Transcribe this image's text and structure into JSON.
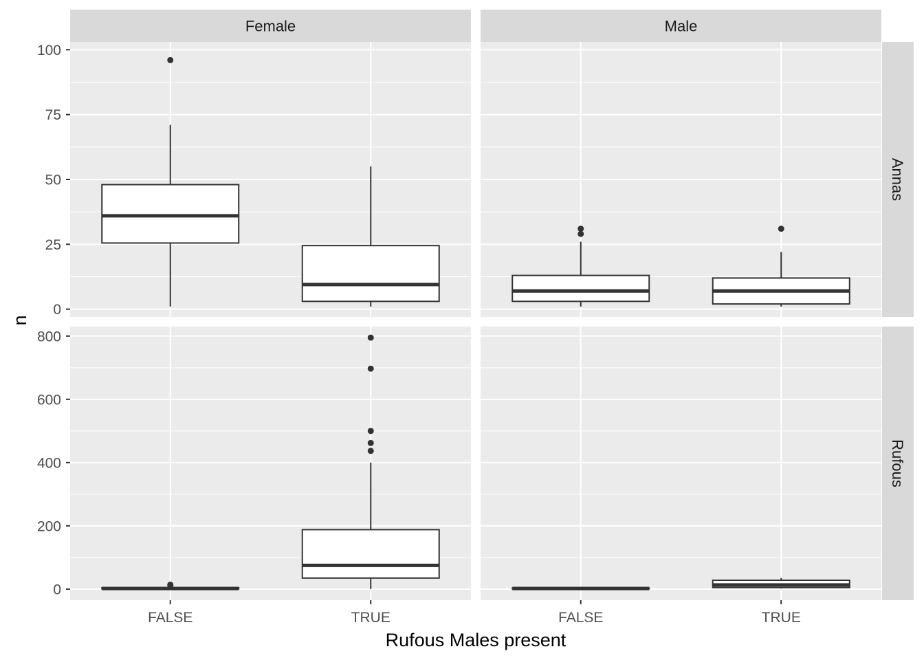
{
  "chart_data": {
    "type": "boxplot",
    "xlabel": "Rufous Males present",
    "ylabel": "n",
    "categories": [
      "FALSE",
      "TRUE"
    ],
    "col_facets": [
      "Female",
      "Male"
    ],
    "row_facets": [
      "Annas",
      "Rufous"
    ],
    "row_scales": {
      "Annas": {
        "ylim": [
          -3,
          103
        ],
        "ticks": [
          0,
          25,
          50,
          75,
          100
        ],
        "tick_labels": [
          "0",
          "25",
          "50",
          "75",
          "100"
        ]
      },
      "Rufous": {
        "ylim": [
          -35,
          830
        ],
        "ticks": [
          0,
          200,
          400,
          600,
          800
        ],
        "tick_labels": [
          "0",
          "200",
          "400",
          "600",
          "800"
        ]
      }
    },
    "panels": [
      {
        "row": "Annas",
        "col": "Female",
        "boxes": [
          {
            "category": "FALSE",
            "lower_whisker": 1,
            "q1": 25.5,
            "median": 36,
            "q3": 48,
            "upper_whisker": 71,
            "outliers": [
              96
            ]
          },
          {
            "category": "TRUE",
            "lower_whisker": 1,
            "q1": 3,
            "median": 9.5,
            "q3": 24.5,
            "upper_whisker": 55,
            "outliers": []
          }
        ]
      },
      {
        "row": "Annas",
        "col": "Male",
        "boxes": [
          {
            "category": "FALSE",
            "lower_whisker": 1,
            "q1": 3,
            "median": 7,
            "q3": 13,
            "upper_whisker": 26,
            "outliers": [
              29,
              31
            ]
          },
          {
            "category": "TRUE",
            "lower_whisker": 1,
            "q1": 2,
            "median": 7,
            "q3": 12,
            "upper_whisker": 22,
            "outliers": [
              31
            ]
          }
        ]
      },
      {
        "row": "Rufous",
        "col": "Female",
        "boxes": [
          {
            "category": "FALSE",
            "lower_whisker": 0,
            "q1": 1,
            "median": 2,
            "q3": 4,
            "upper_whisker": 8,
            "outliers": [
              12,
              14
            ]
          },
          {
            "category": "TRUE",
            "lower_whisker": 0,
            "q1": 35,
            "median": 75,
            "q3": 188,
            "upper_whisker": 400,
            "outliers": [
              437,
              462,
              500,
              697,
              795
            ]
          }
        ]
      },
      {
        "row": "Rufous",
        "col": "Male",
        "boxes": [
          {
            "category": "FALSE",
            "lower_whisker": 0,
            "q1": 1,
            "median": 2,
            "q3": 3,
            "upper_whisker": 5,
            "outliers": []
          },
          {
            "category": "TRUE",
            "lower_whisker": 2,
            "q1": 5,
            "median": 13,
            "q3": 28,
            "upper_whisker": 35,
            "outliers": []
          }
        ]
      }
    ],
    "colors": {
      "panel_bg": "#ebebeb",
      "strip_bg": "#d9d9d9",
      "grid": "#ffffff",
      "box_fill": "#ffffff",
      "box_line": "#333333",
      "outlier": "#333333"
    },
    "grid": true
  }
}
